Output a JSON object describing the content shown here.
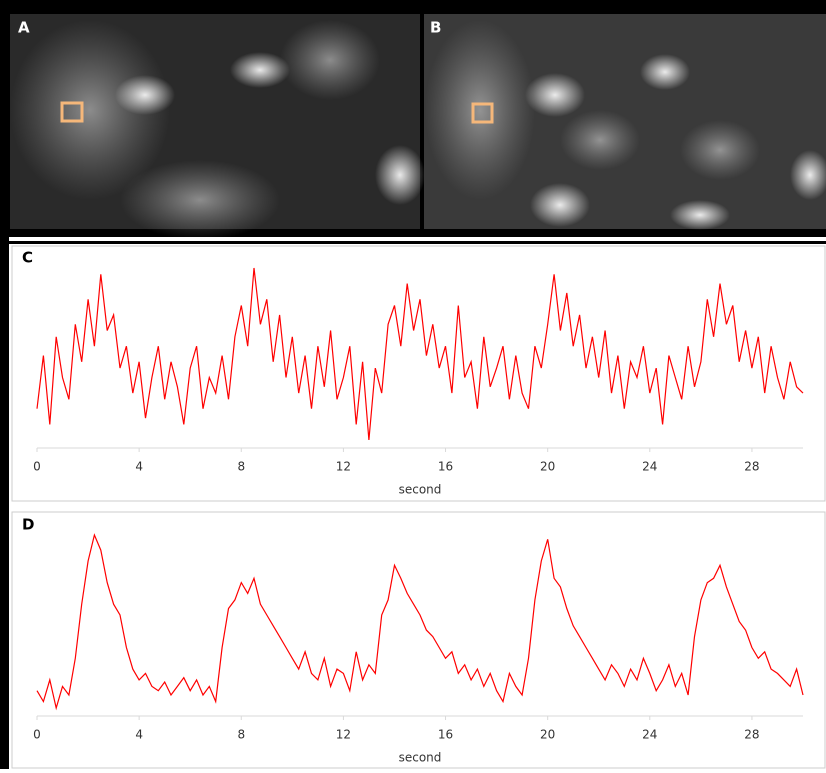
{
  "images": [
    {
      "label": "A"
    },
    {
      "label": "B"
    }
  ],
  "chart_data": [
    {
      "type": "line",
      "label": "C",
      "xlabel": "second",
      "xlim": [
        0,
        30
      ],
      "xticks": [
        0,
        4,
        8,
        12,
        16,
        20,
        24,
        28
      ],
      "x": [
        0,
        0.25,
        0.5,
        0.75,
        1,
        1.25,
        1.5,
        1.75,
        2,
        2.25,
        2.5,
        2.75,
        3,
        3.25,
        3.5,
        3.75,
        4,
        4.25,
        4.5,
        4.75,
        5,
        5.25,
        5.5,
        5.75,
        6,
        6.25,
        6.5,
        6.75,
        7,
        7.25,
        7.5,
        7.75,
        8,
        8.25,
        8.5,
        8.75,
        9,
        9.25,
        9.5,
        9.75,
        10,
        10.25,
        10.5,
        10.75,
        11,
        11.25,
        11.5,
        11.75,
        12,
        12.25,
        12.5,
        12.75,
        13,
        13.25,
        13.5,
        13.75,
        14,
        14.25,
        14.5,
        14.75,
        15,
        15.25,
        15.5,
        15.75,
        16,
        16.25,
        16.5,
        16.75,
        17,
        17.25,
        17.5,
        17.75,
        18,
        18.25,
        18.5,
        18.75,
        19,
        19.25,
        19.5,
        19.75,
        20,
        20.25,
        20.5,
        20.75,
        21,
        21.25,
        21.5,
        21.75,
        22,
        22.25,
        22.5,
        22.75,
        23,
        23.25,
        23.5,
        23.75,
        24,
        24.25,
        24.5,
        24.75,
        25,
        25.25,
        25.5,
        25.75,
        26,
        26.25,
        26.5,
        26.75,
        27,
        27.25,
        27.5,
        27.75,
        28,
        28.25,
        28.5,
        28.75,
        29,
        29.25,
        29.5,
        29.75,
        30
      ],
      "series": [
        {
          "color": "#ff0000",
          "values": [
            35,
            52,
            30,
            58,
            45,
            38,
            62,
            50,
            70,
            55,
            78,
            60,
            65,
            48,
            55,
            40,
            50,
            32,
            45,
            55,
            38,
            50,
            42,
            30,
            48,
            55,
            35,
            45,
            40,
            52,
            38,
            58,
            68,
            55,
            80,
            62,
            70,
            50,
            65,
            45,
            58,
            40,
            52,
            35,
            55,
            42,
            60,
            38,
            45,
            55,
            30,
            50,
            25,
            48,
            40,
            62,
            68,
            55,
            75,
            60,
            70,
            52,
            62,
            48,
            55,
            40,
            68,
            45,
            50,
            35,
            58,
            42,
            48,
            55,
            38,
            52,
            40,
            35,
            55,
            48,
            62,
            78,
            60,
            72,
            55,
            65,
            48,
            58,
            45,
            60,
            40,
            52,
            35,
            50,
            45,
            55,
            40,
            48,
            30,
            52,
            45,
            38,
            55,
            42,
            50,
            70,
            58,
            75,
            62,
            68,
            50,
            60,
            48,
            58,
            40,
            55,
            45,
            38,
            50,
            42,
            40
          ]
        }
      ]
    },
    {
      "type": "line",
      "label": "D",
      "xlabel": "second",
      "xlim": [
        0,
        30
      ],
      "xticks": [
        0,
        4,
        8,
        12,
        16,
        20,
        24,
        28
      ],
      "x": [
        0,
        0.25,
        0.5,
        0.75,
        1,
        1.25,
        1.5,
        1.75,
        2,
        2.25,
        2.5,
        2.75,
        3,
        3.25,
        3.5,
        3.75,
        4,
        4.25,
        4.5,
        4.75,
        5,
        5.25,
        5.5,
        5.75,
        6,
        6.25,
        6.5,
        6.75,
        7,
        7.25,
        7.5,
        7.75,
        8,
        8.25,
        8.5,
        8.75,
        9,
        9.25,
        9.5,
        9.75,
        10,
        10.25,
        10.5,
        10.75,
        11,
        11.25,
        11.5,
        11.75,
        12,
        12.25,
        12.5,
        12.75,
        13,
        13.25,
        13.5,
        13.75,
        14,
        14.25,
        14.5,
        14.75,
        15,
        15.25,
        15.5,
        15.75,
        16,
        16.25,
        16.5,
        16.75,
        17,
        17.25,
        17.5,
        17.75,
        18,
        18.25,
        18.5,
        18.75,
        19,
        19.25,
        19.5,
        19.75,
        20,
        20.25,
        20.5,
        20.75,
        21,
        21.25,
        21.5,
        21.75,
        22,
        22.25,
        22.5,
        22.75,
        23,
        23.25,
        23.5,
        23.75,
        24,
        24.25,
        24.5,
        24.75,
        25,
        25.25,
        25.5,
        25.75,
        26,
        26.25,
        26.5,
        26.75,
        27,
        27.25,
        27.5,
        27.75,
        28,
        28.25,
        28.5,
        28.75,
        29,
        29.25,
        29.5,
        29.75,
        30
      ],
      "series": [
        {
          "color": "#ff0000",
          "values": [
            20,
            15,
            25,
            12,
            22,
            18,
            35,
            60,
            80,
            92,
            85,
            70,
            60,
            55,
            40,
            30,
            25,
            28,
            22,
            20,
            24,
            18,
            22,
            26,
            20,
            25,
            18,
            22,
            15,
            40,
            58,
            62,
            70,
            65,
            72,
            60,
            55,
            50,
            45,
            40,
            35,
            30,
            38,
            28,
            25,
            35,
            22,
            30,
            28,
            20,
            38,
            25,
            32,
            28,
            55,
            62,
            78,
            72,
            65,
            60,
            55,
            48,
            45,
            40,
            35,
            38,
            28,
            32,
            25,
            30,
            22,
            28,
            20,
            15,
            28,
            22,
            18,
            35,
            62,
            80,
            90,
            72,
            68,
            58,
            50,
            45,
            40,
            35,
            30,
            25,
            32,
            28,
            22,
            30,
            25,
            35,
            28,
            20,
            25,
            32,
            22,
            28,
            18,
            45,
            62,
            70,
            72,
            78,
            68,
            60,
            52,
            48,
            40,
            35,
            38,
            30,
            28,
            25,
            22,
            30,
            18
          ]
        }
      ]
    }
  ]
}
